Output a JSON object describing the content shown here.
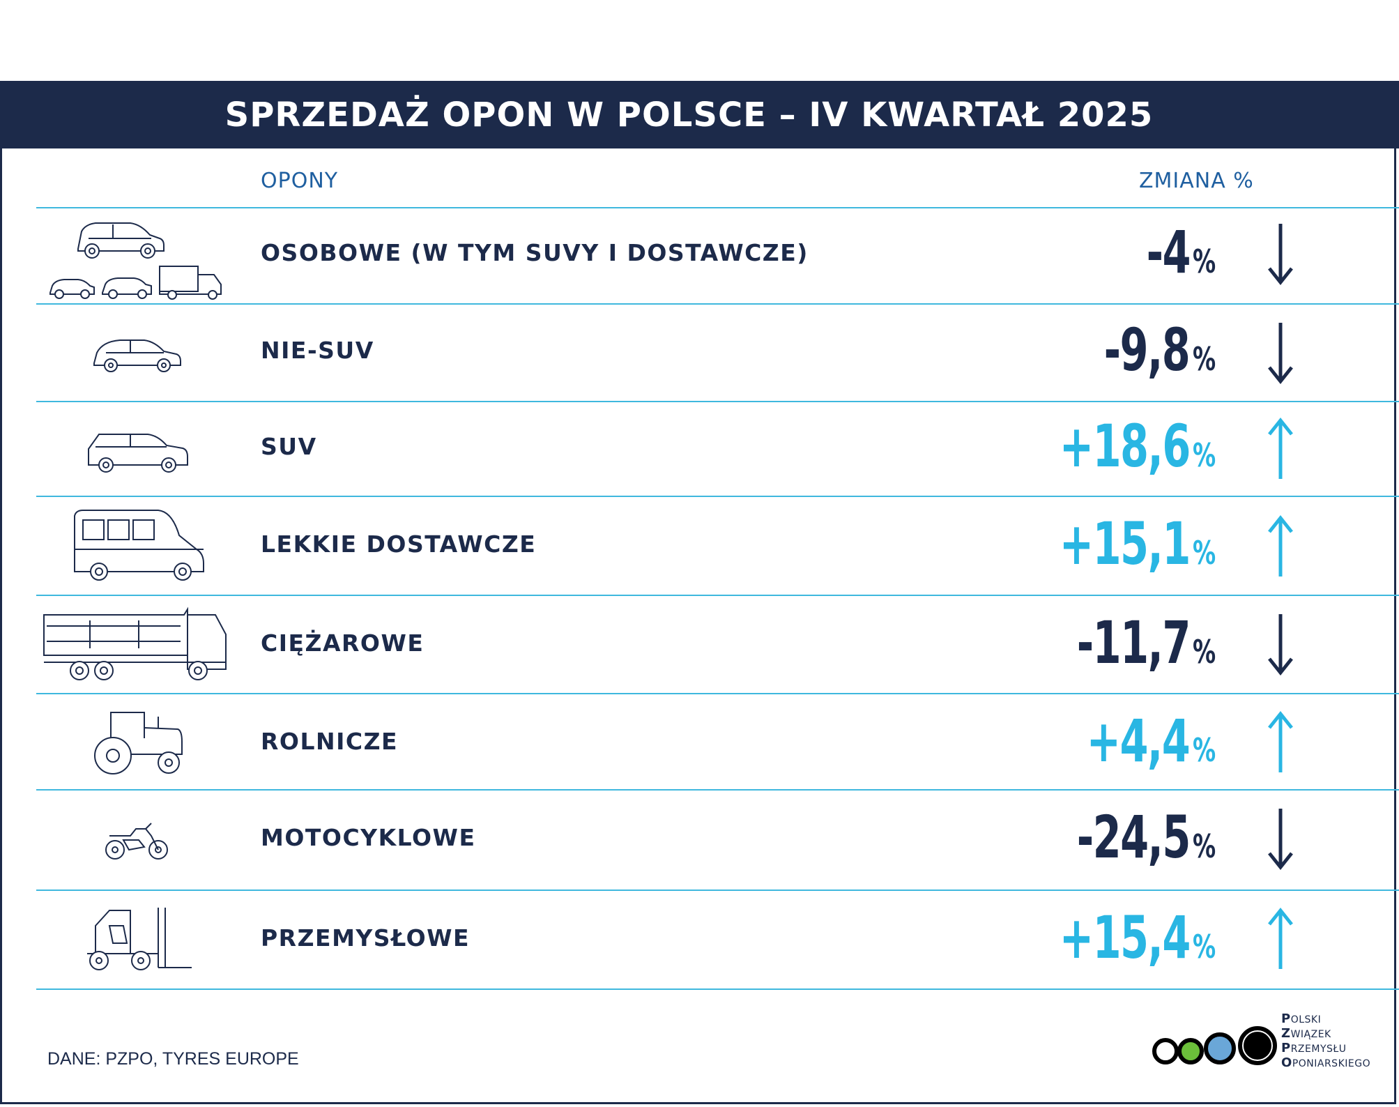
{
  "header": {
    "title": "SPRZEDAŻ OPON W POLSCE – IV KWARTAŁ 2025"
  },
  "columns": {
    "tyres": "OPONY",
    "change": "ZMIANA %"
  },
  "rows": [
    {
      "label": "OSOBOWE (W TYM SUVY I DOSTAWCZE)",
      "value": "-4",
      "unit": "%",
      "trend": "down",
      "icon": "passenger-cars-group-icon"
    },
    {
      "label": "NIE-SUV",
      "value": "-9,8",
      "unit": "%",
      "trend": "down",
      "icon": "hatchback-car-icon"
    },
    {
      "label": "SUV",
      "value": "+18,6",
      "unit": "%",
      "trend": "up",
      "icon": "suv-icon"
    },
    {
      "label": "LEKKIE DOSTAWCZE",
      "value": "+15,1",
      "unit": "%",
      "trend": "up",
      "icon": "van-icon"
    },
    {
      "label": "CIĘŻAROWE",
      "value": "-11,7",
      "unit": "%",
      "trend": "down",
      "icon": "dump-truck-icon"
    },
    {
      "label": "ROLNICZE",
      "value": "+4,4",
      "unit": "%",
      "trend": "up",
      "icon": "tractor-icon"
    },
    {
      "label": "MOTOCYKLOWE",
      "value": "-24,5",
      "unit": "%",
      "trend": "down",
      "icon": "motorcycle-icon"
    },
    {
      "label": "PRZEMYSŁOWE",
      "value": "+15,4",
      "unit": "%",
      "trend": "up",
      "icon": "forklift-icon"
    }
  ],
  "footer": {
    "source": "DANE: PZPO, TYRES EUROPE",
    "logo_lines": [
      {
        "initial": "P",
        "rest": "OLSKI"
      },
      {
        "initial": "Z",
        "rest": "WIĄZEK"
      },
      {
        "initial": "P",
        "rest": "RZEMYSŁU"
      },
      {
        "initial": "O",
        "rest": "PONIARSKIEGO"
      }
    ],
    "logo_colors": [
      "#ffffff",
      "#6bbf3a",
      "#6aa7d8",
      "#000000"
    ]
  },
  "colors": {
    "navy": "#1c2a4a",
    "cyan": "#29b6e3",
    "rule": "#3fb8de"
  }
}
